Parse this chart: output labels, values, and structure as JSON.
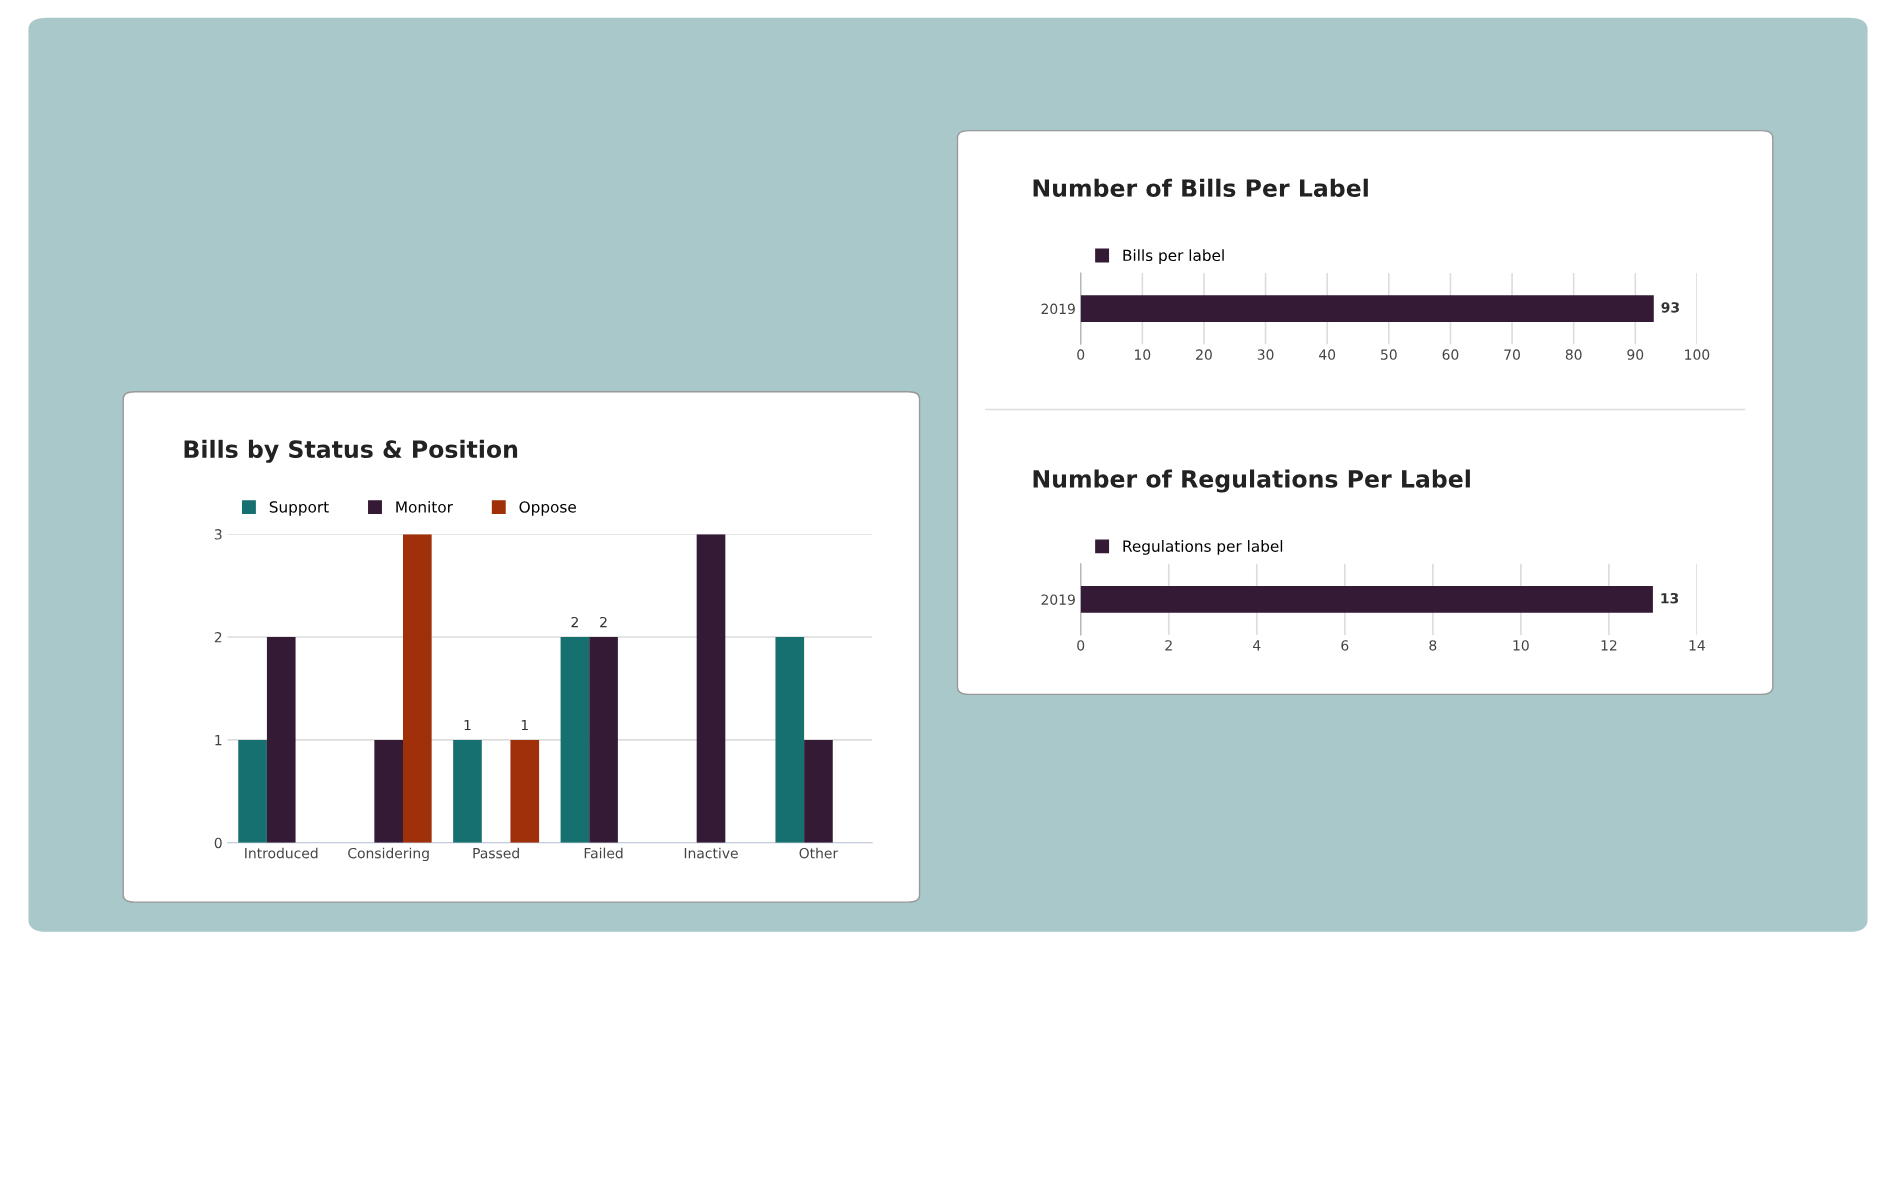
{
  "chart_data": [
    {
      "type": "bar",
      "title": "Bills by Status & Position",
      "categories": [
        "Introduced",
        "Considering",
        "Passed",
        "Failed",
        "Inactive",
        "Other"
      ],
      "series": [
        {
          "name": "Support",
          "color": "#16706f",
          "values": [
            1,
            null,
            1,
            2,
            null,
            2
          ],
          "value_labels": [
            null,
            null,
            "1",
            "2",
            null,
            null
          ]
        },
        {
          "name": "Monitor",
          "color": "#351a36",
          "values": [
            2,
            1,
            null,
            2,
            3,
            1
          ],
          "value_labels": [
            null,
            null,
            null,
            "2",
            null,
            null
          ]
        },
        {
          "name": "Oppose",
          "color": "#a0300a",
          "values": [
            null,
            3,
            1,
            null,
            null,
            null
          ],
          "value_labels": [
            null,
            null,
            "1",
            null,
            null,
            null
          ]
        }
      ],
      "ylim": [
        0,
        3
      ],
      "yticks": [
        0,
        1,
        2,
        3
      ],
      "grid": "y",
      "legend": "top left"
    },
    {
      "type": "bar",
      "orientation": "horizontal",
      "title": "Number of Bills Per Label",
      "categories": [
        "2019"
      ],
      "series": [
        {
          "name": "Bills per label",
          "color": "#351a36",
          "values": [
            93
          ]
        }
      ],
      "xlim": [
        0,
        100
      ],
      "xticks": [
        0,
        10,
        20,
        30,
        40,
        50,
        60,
        70,
        80,
        90,
        100
      ],
      "grid": "x",
      "legend": "top left",
      "data_labels": true
    },
    {
      "type": "bar",
      "orientation": "horizontal",
      "title": "Number of Regulations Per Label",
      "categories": [
        "2019"
      ],
      "series": [
        {
          "name": "Regulations per label",
          "color": "#351a36",
          "values": [
            13
          ]
        }
      ],
      "xlim": [
        0,
        14
      ],
      "xticks": [
        0,
        2,
        4,
        6,
        8,
        10,
        12,
        14
      ],
      "grid": "x",
      "legend": "top left",
      "data_labels": true
    }
  ]
}
